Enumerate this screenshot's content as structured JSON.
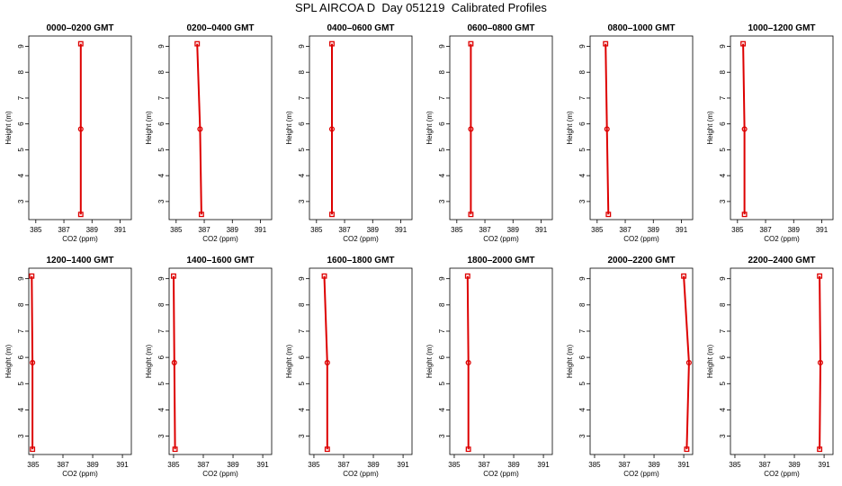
{
  "title": "SPL AIRCOA D  Day 051219  Calibrated Profiles",
  "colors": {
    "profile": "#dd0000",
    "axis": "#000000"
  },
  "chart_data": [
    {
      "type": "line",
      "title": "0000–0200 GMT",
      "xlabel": "CO2 (ppm)",
      "ylabel": "Height (m)",
      "xlim": [
        384.5,
        391.8
      ],
      "ylim": [
        2.3,
        9.4
      ],
      "xticks": [
        "385",
        "387",
        "389",
        "391"
      ],
      "yticks": [
        "3",
        "4",
        "5",
        "6",
        "7",
        "8",
        "9"
      ],
      "grid": false,
      "series": [
        {
          "x": [
            388.2,
            388.2,
            388.2
          ],
          "y": [
            2.5,
            5.8,
            9.1
          ]
        }
      ]
    },
    {
      "type": "line",
      "title": "0200–0400 GMT",
      "xlabel": "CO2 (ppm)",
      "ylabel": "Height (m)",
      "xlim": [
        384.5,
        391.8
      ],
      "ylim": [
        2.3,
        9.4
      ],
      "xticks": [
        "385",
        "387",
        "389",
        "391"
      ],
      "yticks": [
        "3",
        "4",
        "5",
        "6",
        "7",
        "8",
        "9"
      ],
      "grid": false,
      "series": [
        {
          "x": [
            386.8,
            386.7,
            386.5
          ],
          "y": [
            2.5,
            5.8,
            9.1
          ]
        }
      ]
    },
    {
      "type": "line",
      "title": "0400–0600 GMT",
      "xlabel": "CO2 (ppm)",
      "ylabel": "Height (m)",
      "xlim": [
        384.5,
        391.8
      ],
      "ylim": [
        2.3,
        9.4
      ],
      "xticks": [
        "385",
        "387",
        "389",
        "391"
      ],
      "yticks": [
        "3",
        "4",
        "5",
        "6",
        "7",
        "8",
        "9"
      ],
      "grid": false,
      "series": [
        {
          "x": [
            386.1,
            386.1,
            386.1
          ],
          "y": [
            2.5,
            5.8,
            9.1
          ]
        }
      ]
    },
    {
      "type": "line",
      "title": "0600–0800 GMT",
      "xlabel": "CO2 (ppm)",
      "ylabel": "Height (m)",
      "xlim": [
        384.5,
        391.8
      ],
      "ylim": [
        2.3,
        9.4
      ],
      "xticks": [
        "385",
        "387",
        "389",
        "391"
      ],
      "yticks": [
        "3",
        "4",
        "5",
        "6",
        "7",
        "8",
        "9"
      ],
      "grid": false,
      "series": [
        {
          "x": [
            386.0,
            386.0,
            386.0
          ],
          "y": [
            2.5,
            5.8,
            9.1
          ]
        }
      ]
    },
    {
      "type": "line",
      "title": "0800–1000 GMT",
      "xlabel": "CO2 (ppm)",
      "ylabel": "Height (m)",
      "xlim": [
        384.5,
        391.8
      ],
      "ylim": [
        2.3,
        9.4
      ],
      "xticks": [
        "385",
        "387",
        "389",
        "391"
      ],
      "yticks": [
        "3",
        "4",
        "5",
        "6",
        "7",
        "8",
        "9"
      ],
      "grid": false,
      "series": [
        {
          "x": [
            385.8,
            385.7,
            385.6
          ],
          "y": [
            2.5,
            5.8,
            9.1
          ]
        }
      ]
    },
    {
      "type": "line",
      "title": "1000–1200 GMT",
      "xlabel": "CO2 (ppm)",
      "ylabel": "Height (m)",
      "xlim": [
        384.5,
        391.8
      ],
      "ylim": [
        2.3,
        9.4
      ],
      "xticks": [
        "385",
        "387",
        "389",
        "391"
      ],
      "yticks": [
        "3",
        "4",
        "5",
        "6",
        "7",
        "8",
        "9"
      ],
      "grid": false,
      "series": [
        {
          "x": [
            385.5,
            385.5,
            385.4
          ],
          "y": [
            2.5,
            5.8,
            9.1
          ]
        }
      ]
    },
    {
      "type": "line",
      "title": "1200–1400 GMT",
      "xlabel": "CO2 (ppm)",
      "ylabel": "Height (m)",
      "xlim": [
        384.7,
        391.6
      ],
      "ylim": [
        2.3,
        9.4
      ],
      "xticks": [
        "385",
        "387",
        "389",
        "391"
      ],
      "yticks": [
        "3",
        "4",
        "5",
        "6",
        "7",
        "8",
        "9"
      ],
      "grid": false,
      "series": [
        {
          "x": [
            384.95,
            384.95,
            384.9
          ],
          "y": [
            2.5,
            5.8,
            9.1
          ]
        }
      ]
    },
    {
      "type": "line",
      "title": "1400–1600 GMT",
      "xlabel": "CO2 (ppm)",
      "ylabel": "Height (m)",
      "xlim": [
        384.7,
        391.6
      ],
      "ylim": [
        2.3,
        9.4
      ],
      "xticks": [
        "385",
        "387",
        "389",
        "391"
      ],
      "yticks": [
        "3",
        "4",
        "5",
        "6",
        "7",
        "8",
        "9"
      ],
      "grid": false,
      "series": [
        {
          "x": [
            385.1,
            385.05,
            385.0
          ],
          "y": [
            2.5,
            5.8,
            9.1
          ]
        }
      ]
    },
    {
      "type": "line",
      "title": "1600–1800 GMT",
      "xlabel": "CO2 (ppm)",
      "ylabel": "Height (m)",
      "xlim": [
        384.7,
        391.6
      ],
      "ylim": [
        2.3,
        9.4
      ],
      "xticks": [
        "385",
        "387",
        "389",
        "391"
      ],
      "yticks": [
        "3",
        "4",
        "5",
        "6",
        "7",
        "8",
        "9"
      ],
      "grid": false,
      "series": [
        {
          "x": [
            385.9,
            385.9,
            385.7
          ],
          "y": [
            2.5,
            5.8,
            9.1
          ]
        }
      ]
    },
    {
      "type": "line",
      "title": "1800–2000 GMT",
      "xlabel": "CO2 (ppm)",
      "ylabel": "Height (m)",
      "xlim": [
        384.7,
        391.6
      ],
      "ylim": [
        2.3,
        9.4
      ],
      "xticks": [
        "385",
        "387",
        "389",
        "391"
      ],
      "yticks": [
        "3",
        "4",
        "5",
        "6",
        "7",
        "8",
        "9"
      ],
      "grid": false,
      "series": [
        {
          "x": [
            385.95,
            385.95,
            385.9
          ],
          "y": [
            2.5,
            5.8,
            9.1
          ]
        }
      ]
    },
    {
      "type": "line",
      "title": "2000–2200 GMT",
      "xlabel": "CO2 (ppm)",
      "ylabel": "Height (m)",
      "xlim": [
        384.7,
        391.6
      ],
      "ylim": [
        2.3,
        9.4
      ],
      "xticks": [
        "385",
        "387",
        "389",
        "391"
      ],
      "yticks": [
        "3",
        "4",
        "5",
        "6",
        "7",
        "8",
        "9"
      ],
      "grid": false,
      "series": [
        {
          "x": [
            391.2,
            391.35,
            391.0
          ],
          "y": [
            2.5,
            5.8,
            9.1
          ]
        }
      ]
    },
    {
      "type": "line",
      "title": "2200–2400 GMT",
      "xlabel": "CO2 (ppm)",
      "ylabel": "Height (m)",
      "xlim": [
        384.7,
        391.6
      ],
      "ylim": [
        2.3,
        9.4
      ],
      "xticks": [
        "385",
        "387",
        "389",
        "391"
      ],
      "yticks": [
        "3",
        "4",
        "5",
        "6",
        "7",
        "8",
        "9"
      ],
      "grid": false,
      "series": [
        {
          "x": [
            390.7,
            390.75,
            390.7
          ],
          "y": [
            2.5,
            5.8,
            9.1
          ]
        }
      ]
    }
  ]
}
